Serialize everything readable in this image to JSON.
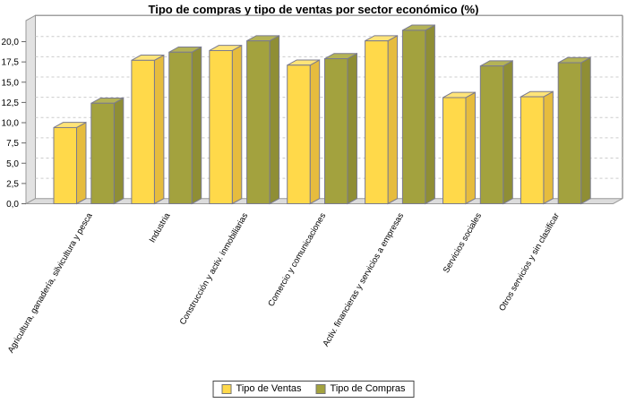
{
  "page": {
    "background": "#FFFFFF"
  },
  "chart_data": {
    "type": "bar",
    "style": "3d-grouped-bar",
    "title": "Tipo de compras y tipo de ventas por sector económico (%)",
    "categories": [
      "Agricultura, ganadería, silvicultura y pesca",
      "Industria",
      "Construcción y activ. inmobiliarias",
      "Comercio y comunicaciones",
      "Activ. financieras y servicios a empresas",
      "Servicios sociales",
      "Otros servicios y sin clasificar"
    ],
    "series": [
      {
        "name": "Tipo de Ventas",
        "color": "#FFD94A",
        "color_top": "#FFE478",
        "color_side": "#E6BC3E",
        "values": [
          9.4,
          17.7,
          18.9,
          17.1,
          20.1,
          13.1,
          13.2
        ]
      },
      {
        "name": "Tipo de Compras",
        "color": "#A3A23E",
        "color_top": "#B4B356",
        "color_side": "#8F8E35",
        "values": [
          12.4,
          18.7,
          20.1,
          17.9,
          21.4,
          17.0,
          17.4
        ]
      }
    ],
    "xlabel": "",
    "ylabel": "",
    "ylim": [
      0,
      22.6
    ],
    "yticks": [
      {
        "v": 0,
        "label": "0,0"
      },
      {
        "v": 2.5,
        "label": "2,5"
      },
      {
        "v": 5,
        "label": "5,0"
      },
      {
        "v": 7.5,
        "label": "7,5"
      },
      {
        "v": 10,
        "label": "10,0"
      },
      {
        "v": 12.5,
        "label": "12,5"
      },
      {
        "v": 15,
        "label": "15,0"
      },
      {
        "v": 17.5,
        "label": "17,5"
      },
      {
        "v": 20,
        "label": "20,0"
      }
    ],
    "grid": "horizontal-dashed",
    "legend_position": "bottom-center",
    "colors": {
      "gridline": "#CCCCCC",
      "outline": "#7B7B8E",
      "wall_fill": "#E2E2E2",
      "floor_fill": "#DCDCDC",
      "wall_edge": "#9A9A9A",
      "axis_border": "#808080",
      "tick": "#666666",
      "text": "#000000"
    }
  }
}
